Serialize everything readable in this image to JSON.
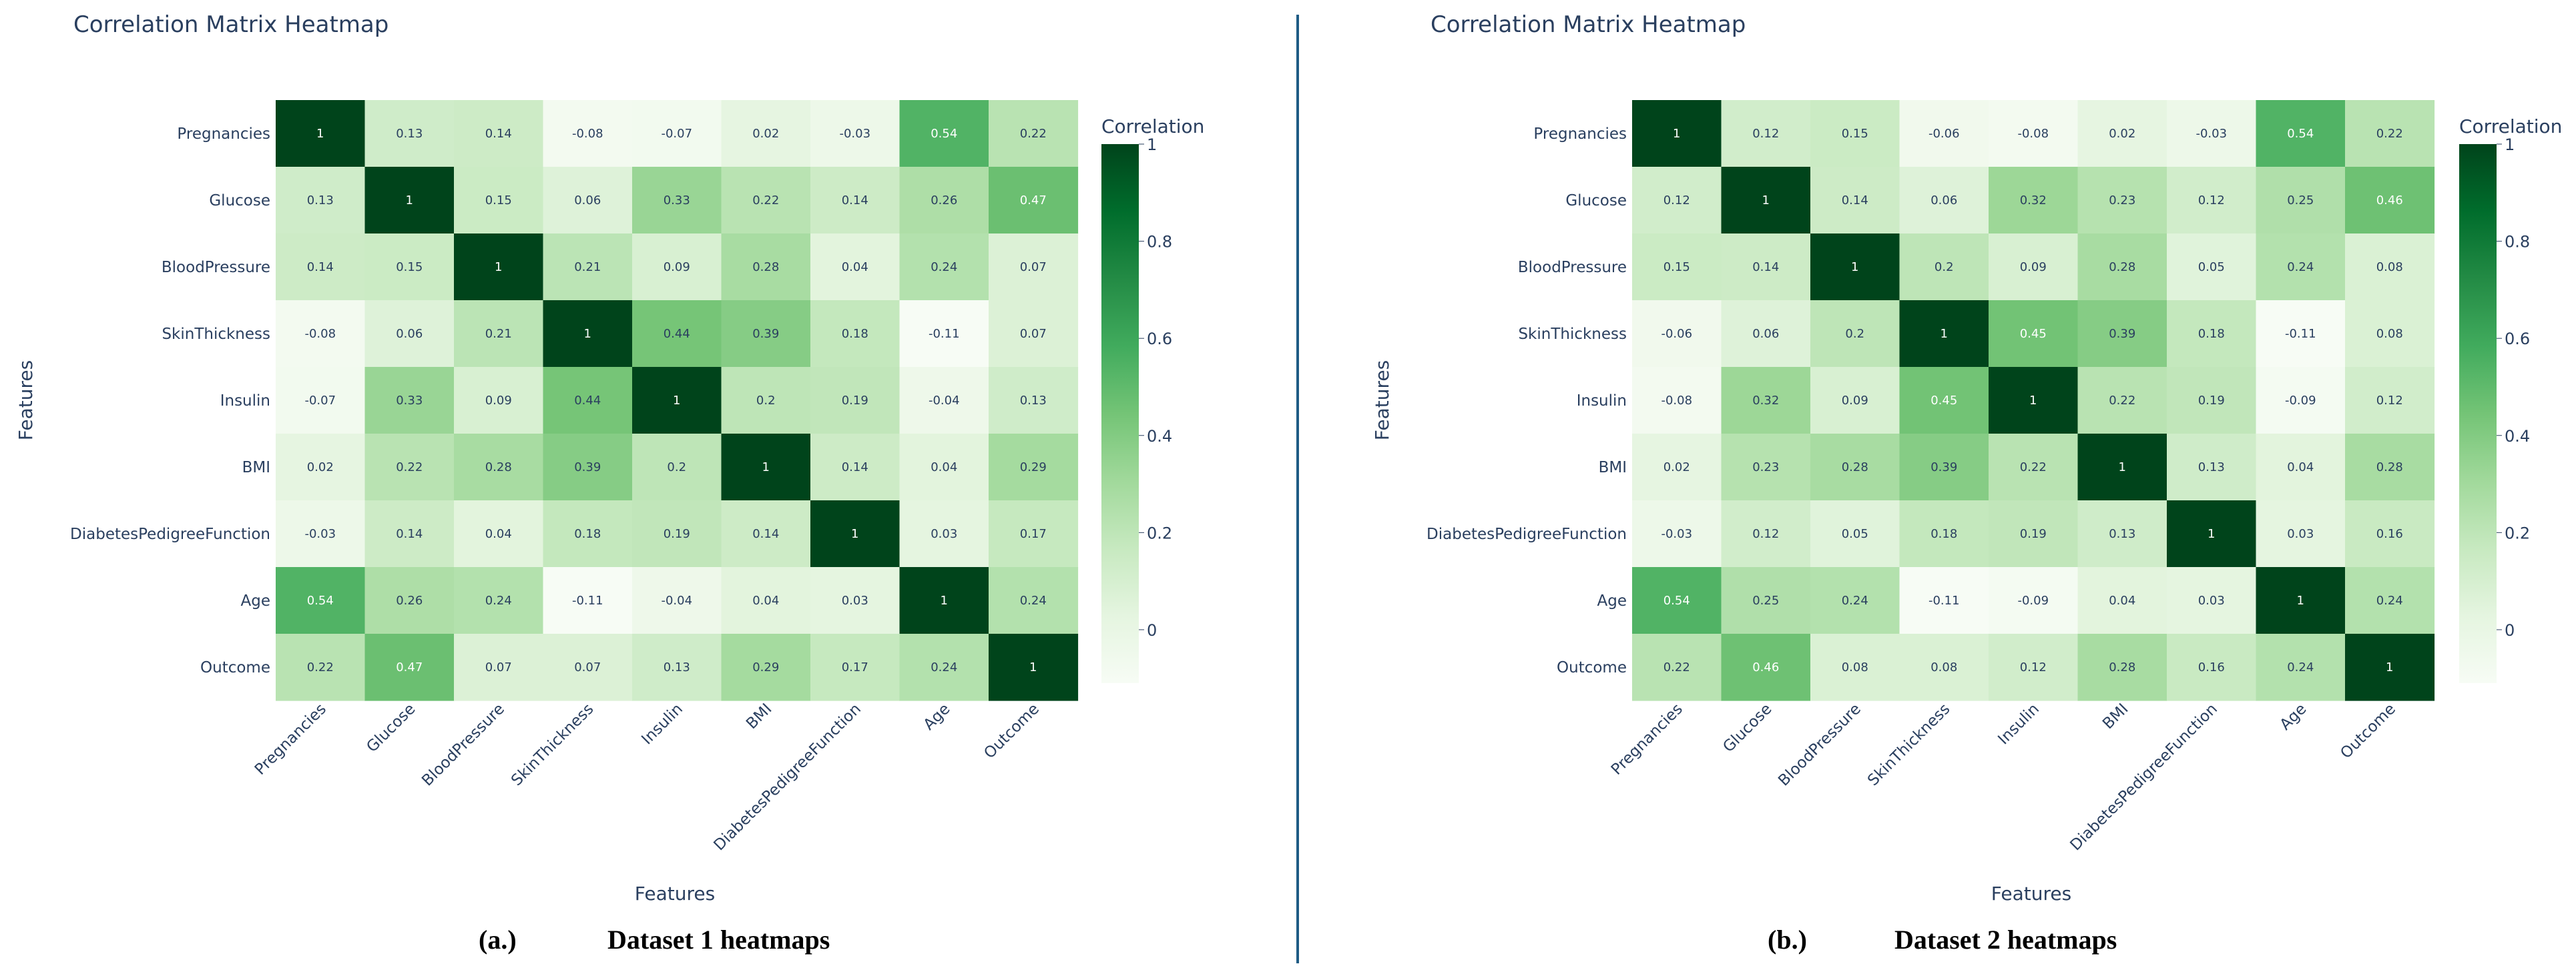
{
  "colors": {
    "colorscale": [
      "#f7fcf5",
      "#e5f5e0",
      "#c7e9c0",
      "#a1d99b",
      "#74c476",
      "#41ab5d",
      "#238b45",
      "#006d2c",
      "#00441b"
    ],
    "divider": "#1f5c85",
    "text": "#2a3f5f"
  },
  "chart_data": [
    {
      "type": "heatmap",
      "title": "Correlation Matrix Heatmap",
      "xlabel": "Features",
      "ylabel": "Features",
      "colorbar": {
        "title": "Correlation",
        "range": [
          -0.11,
          1
        ],
        "ticks": [
          "0",
          "0.2",
          "0.4",
          "0.6",
          "0.8",
          "1"
        ]
      },
      "caption": {
        "letter": "(a.)",
        "text": "Dataset 1 heatmaps"
      },
      "categories": [
        "Pregnancies",
        "Glucose",
        "BloodPressure",
        "SkinThickness",
        "Insulin",
        "BMI",
        "DiabetesPedigreeFunction",
        "Age",
        "Outcome"
      ],
      "labels": [
        [
          "1",
          "0.13",
          "0.14",
          "-0.08",
          "-0.07",
          "0.02",
          "-0.03",
          "0.54",
          "0.22"
        ],
        [
          "0.13",
          "1",
          "0.15",
          "0.06",
          "0.33",
          "0.22",
          "0.14",
          "0.26",
          "0.47"
        ],
        [
          "0.14",
          "0.15",
          "1",
          "0.21",
          "0.09",
          "0.28",
          "0.04",
          "0.24",
          "0.07"
        ],
        [
          "-0.08",
          "0.06",
          "0.21",
          "1",
          "0.44",
          "0.39",
          "0.18",
          "-0.11",
          "0.07"
        ],
        [
          "-0.07",
          "0.33",
          "0.09",
          "0.44",
          "1",
          "0.2",
          "0.19",
          "-0.04",
          "0.13"
        ],
        [
          "0.02",
          "0.22",
          "0.28",
          "0.39",
          "0.2",
          "1",
          "0.14",
          "0.04",
          "0.29"
        ],
        [
          "-0.03",
          "0.14",
          "0.04",
          "0.18",
          "0.19",
          "0.14",
          "1",
          "0.03",
          "0.17"
        ],
        [
          "0.54",
          "0.26",
          "0.24",
          "-0.11",
          "-0.04",
          "0.04",
          "0.03",
          "1",
          "0.24"
        ],
        [
          "0.22",
          "0.47",
          "0.07",
          "0.07",
          "0.13",
          "0.29",
          "0.17",
          "0.24",
          "1"
        ]
      ]
    },
    {
      "type": "heatmap",
      "title": "Correlation Matrix Heatmap",
      "xlabel": "Features",
      "ylabel": "Features",
      "colorbar": {
        "title": "Correlation",
        "range": [
          -0.11,
          1
        ],
        "ticks": [
          "0",
          "0.2",
          "0.4",
          "0.6",
          "0.8",
          "1"
        ]
      },
      "caption": {
        "letter": "(b.)",
        "text": "Dataset 2 heatmaps"
      },
      "categories": [
        "Pregnancies",
        "Glucose",
        "BloodPressure",
        "SkinThickness",
        "Insulin",
        "BMI",
        "DiabetesPedigreeFunction",
        "Age",
        "Outcome"
      ],
      "labels": [
        [
          "1",
          "0.12",
          "0.15",
          "-0.06",
          "-0.08",
          "0.02",
          "-0.03",
          "0.54",
          "0.22"
        ],
        [
          "0.12",
          "1",
          "0.14",
          "0.06",
          "0.32",
          "0.23",
          "0.12",
          "0.25",
          "0.46"
        ],
        [
          "0.15",
          "0.14",
          "1",
          "0.2",
          "0.09",
          "0.28",
          "0.05",
          "0.24",
          "0.08"
        ],
        [
          "-0.06",
          "0.06",
          "0.2",
          "1",
          "0.45",
          "0.39",
          "0.18",
          "-0.11",
          "0.08"
        ],
        [
          "-0.08",
          "0.32",
          "0.09",
          "0.45",
          "1",
          "0.22",
          "0.19",
          "-0.09",
          "0.12"
        ],
        [
          "0.02",
          "0.23",
          "0.28",
          "0.39",
          "0.22",
          "1",
          "0.13",
          "0.04",
          "0.28"
        ],
        [
          "-0.03",
          "0.12",
          "0.05",
          "0.18",
          "0.19",
          "0.13",
          "1",
          "0.03",
          "0.16"
        ],
        [
          "0.54",
          "0.25",
          "0.24",
          "-0.11",
          "-0.09",
          "0.04",
          "0.03",
          "1",
          "0.24"
        ],
        [
          "0.22",
          "0.46",
          "0.08",
          "0.08",
          "0.12",
          "0.28",
          "0.16",
          "0.24",
          "1"
        ]
      ]
    }
  ]
}
